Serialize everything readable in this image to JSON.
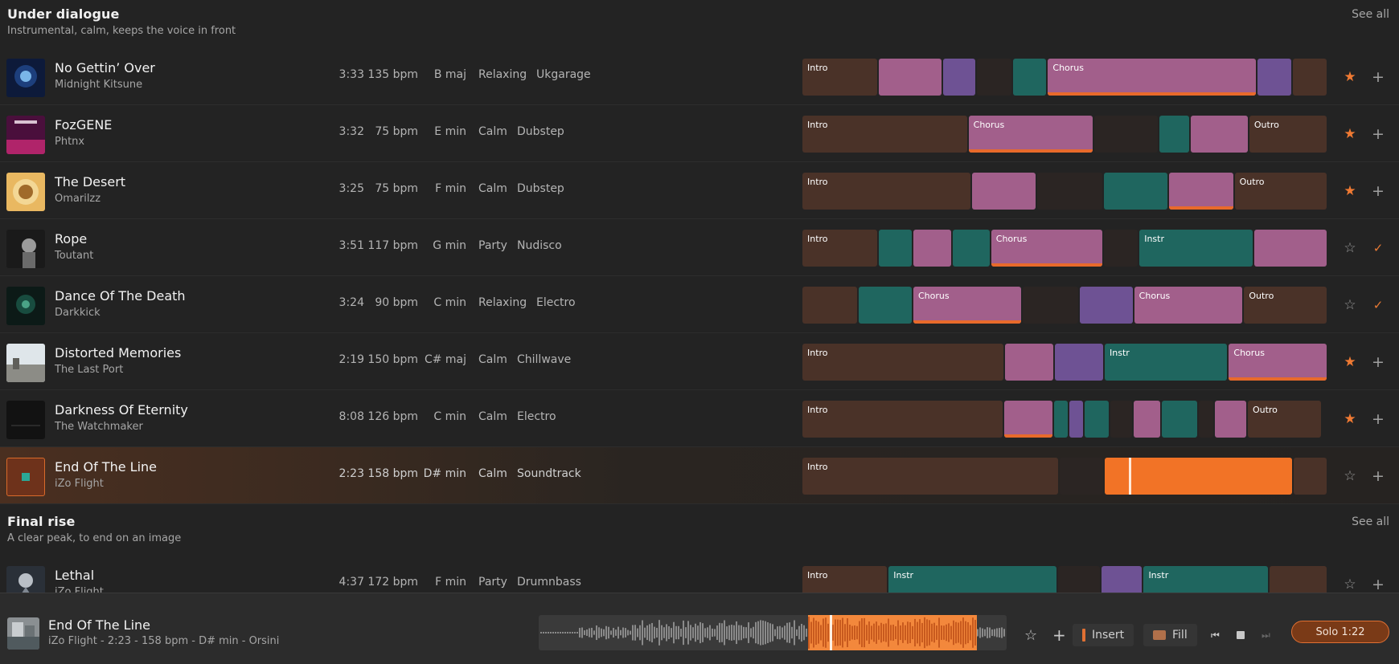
{
  "colors": {
    "intro": "#4a3228",
    "pink": "#a25f8b",
    "purple": "#6e5294",
    "teal": "#1f665f",
    "gap": "#2b2523",
    "orange": "#f27326",
    "accent": "#e86a2b"
  },
  "sections": [
    {
      "title": "Under dialogue",
      "subtitle": "Instrumental, calm, keeps the voice in front",
      "see_all": "See all",
      "tracks": [
        {
          "name": "No Gettin’ Over",
          "artist": "Midnight Kitsune",
          "duration": "3:33",
          "bpm": "135 bpm",
          "key": "B maj",
          "mood": "Relaxing",
          "genre": "Ukgarage",
          "favorite": "star-filled-icon",
          "action": "plus-icon",
          "segments": [
            {
              "type": "intro",
              "label": "Intro",
              "w": 0.145
            },
            {
              "type": "pink",
              "w": 0.122
            },
            {
              "type": "purple",
              "w": 0.065
            },
            {
              "type": "gap",
              "w": 0.068
            },
            {
              "type": "teal",
              "w": 0.067
            },
            {
              "type": "pink",
              "label": "Chorus",
              "w": 0.399,
              "bar": true
            },
            {
              "type": "purple",
              "w": 0.066
            },
            {
              "type": "intro",
              "w": 0.068
            }
          ]
        },
        {
          "name": "FozGENE",
          "artist": "Phtnx",
          "duration": "3:32",
          "bpm": "75 bpm",
          "key": "E min",
          "mood": "Calm",
          "genre": "Dubstep",
          "favorite": "star-filled-icon",
          "action": "plus-icon",
          "segments": [
            {
              "type": "intro",
              "label": "Intro",
              "w": 0.316
            },
            {
              "type": "pink",
              "label": "Chorus",
              "w": 0.239,
              "bar": true
            },
            {
              "type": "gap",
              "w": 0.124
            },
            {
              "type": "teal",
              "w": 0.059
            },
            {
              "type": "pink",
              "w": 0.112
            },
            {
              "type": "intro",
              "label": "Outro",
              "w": 0.15
            }
          ]
        },
        {
          "name": "The Desert",
          "artist": "Omarilzz",
          "duration": "3:25",
          "bpm": "75 bpm",
          "key": "F min",
          "mood": "Calm",
          "genre": "Dubstep",
          "favorite": "star-filled-icon",
          "action": "plus-icon",
          "segments": [
            {
              "type": "intro",
              "label": "Intro",
              "w": 0.323
            },
            {
              "type": "pink",
              "w": 0.124
            },
            {
              "type": "gap",
              "w": 0.126
            },
            {
              "type": "teal",
              "w": 0.124
            },
            {
              "type": "pink",
              "w": 0.125,
              "bar": true
            },
            {
              "type": "intro",
              "label": "Outro",
              "w": 0.178
            }
          ]
        },
        {
          "name": "Rope",
          "artist": "Toutant",
          "duration": "3:51",
          "bpm": "117 bpm",
          "key": "G min",
          "mood": "Party",
          "genre": "Nudisco",
          "favorite": "star-outline-icon",
          "action": "check-icon",
          "segments": [
            {
              "type": "intro",
              "label": "Intro",
              "w": 0.145
            },
            {
              "type": "teal",
              "w": 0.066
            },
            {
              "type": "pink",
              "w": 0.075
            },
            {
              "type": "teal",
              "w": 0.073
            },
            {
              "type": "pink",
              "label": "Chorus",
              "w": 0.214,
              "bar": true
            },
            {
              "type": "gap",
              "w": 0.068
            },
            {
              "type": "teal",
              "label": "Instr",
              "w": 0.218
            },
            {
              "type": "pink",
              "w": 0.141
            }
          ]
        },
        {
          "name": "Dance Of The Death",
          "artist": "Darkkick",
          "duration": "3:24",
          "bpm": "90 bpm",
          "key": "C min",
          "mood": "Relaxing",
          "genre": "Electro",
          "favorite": "star-outline-icon",
          "action": "check-icon",
          "segments": [
            {
              "type": "intro",
              "w": 0.107
            },
            {
              "type": "teal",
              "w": 0.104
            },
            {
              "type": "pink",
              "label": "Chorus",
              "w": 0.208,
              "bar": true
            },
            {
              "type": "gap",
              "w": 0.108
            },
            {
              "type": "purple",
              "w": 0.104
            },
            {
              "type": "pink",
              "label": "Chorus",
              "w": 0.209
            },
            {
              "type": "intro",
              "label": "Outro",
              "w": 0.16
            }
          ]
        },
        {
          "name": "Distorted Memories",
          "artist": "The Last Port",
          "duration": "2:19",
          "bpm": "150 bpm",
          "key": "C# maj",
          "mood": "Calm",
          "genre": "Chillwave",
          "favorite": "star-filled-icon",
          "action": "plus-icon",
          "segments": [
            {
              "type": "intro",
              "label": "Intro",
              "w": 0.386
            },
            {
              "type": "pink",
              "w": 0.094
            },
            {
              "type": "purple",
              "w": 0.095
            },
            {
              "type": "teal",
              "label": "Instr",
              "w": 0.236
            },
            {
              "type": "pink",
              "label": "Chorus",
              "w": 0.189,
              "bar": true
            }
          ]
        },
        {
          "name": "Darkness Of Eternity",
          "artist": "The Watchmaker",
          "duration": "8:08",
          "bpm": "126 bpm",
          "key": "C min",
          "mood": "Calm",
          "genre": "Electro",
          "favorite": "star-filled-icon",
          "action": "plus-icon",
          "segments": [
            {
              "type": "intro",
              "label": "Intro",
              "w": 0.384
            },
            {
              "type": "pink",
              "w": 0.094,
              "bar": true
            },
            {
              "type": "teal",
              "w": 0.03
            },
            {
              "type": "purple",
              "w": 0.028
            },
            {
              "type": "teal",
              "w": 0.05
            },
            {
              "type": "gap",
              "w": 0.044
            },
            {
              "type": "pink",
              "w": 0.054
            },
            {
              "type": "teal",
              "w": 0.07
            },
            {
              "type": "gap",
              "w": 0.03
            },
            {
              "type": "pink",
              "w": 0.063
            },
            {
              "type": "intro",
              "label": "Outro",
              "w": 0.143
            }
          ]
        },
        {
          "name": "End Of The Line",
          "artist": "iZo Flight",
          "duration": "2:23",
          "bpm": "158 bpm",
          "key": "D# min",
          "mood": "Calm",
          "genre": "Soundtrack",
          "favorite": "star-outline-icon",
          "action": "plus-icon",
          "active": true,
          "segments": [
            {
              "type": "intro",
              "label": "Intro",
              "w": 0.49
            },
            {
              "type": "gap",
              "w": 0.085
            },
            {
              "type": "orange",
              "w": 0.36,
              "cursor": 0.13
            },
            {
              "type": "intro",
              "w": 0.065
            }
          ]
        }
      ]
    },
    {
      "title": "Final rise",
      "subtitle": "A clear peak, to end on an image",
      "see_all": "See all",
      "tracks": [
        {
          "name": "Lethal",
          "artist": "iZo Flight",
          "duration": "4:37",
          "bpm": "172 bpm",
          "key": "F min",
          "mood": "Party",
          "genre": "Drumnbass",
          "favorite": "star-outline-icon",
          "action": "plus-icon",
          "segments": [
            {
              "type": "intro",
              "label": "Intro",
              "w": 0.164
            },
            {
              "type": "teal",
              "label": "Instr",
              "w": 0.323
            },
            {
              "type": "gap",
              "w": 0.082
            },
            {
              "type": "purple",
              "w": 0.08
            },
            {
              "type": "teal",
              "label": "Instr",
              "w": 0.24
            },
            {
              "type": "intro",
              "w": 0.111
            }
          ]
        }
      ]
    }
  ],
  "player": {
    "title": "End Of The Line",
    "subtitle": "iZo Flight - 2:23 - 158 bpm - D# min - Orsini",
    "insert_label": "Insert",
    "fill_label": "Fill",
    "solo_label": "Solo 1:22",
    "icons": [
      "star-outline-icon",
      "plus-icon",
      "skip-back-icon",
      "stop-icon",
      "skip-forward-icon"
    ]
  }
}
